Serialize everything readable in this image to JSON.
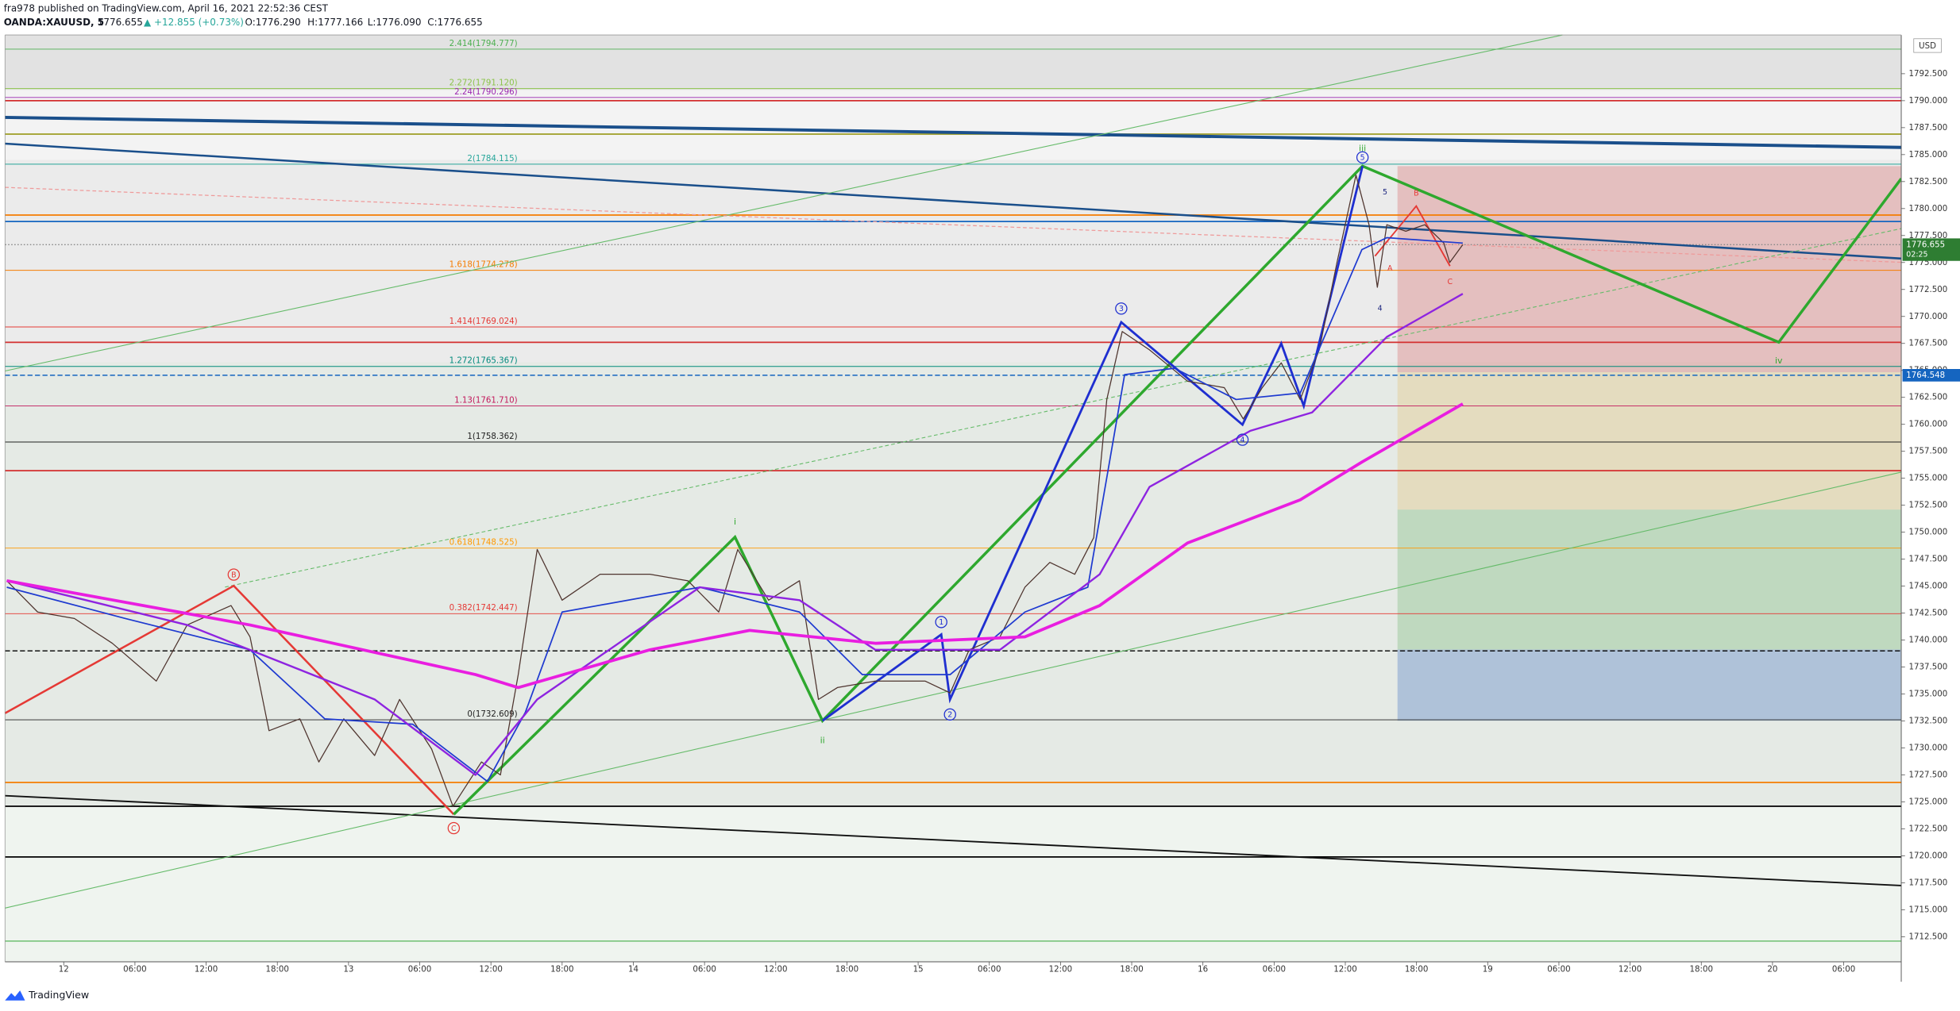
{
  "header": {
    "publisher": "fra978 published on TradingView.com, April 16, 2021 22:52:36 CEST",
    "symbol": "OANDA:XAUUSD, 5",
    "last": "1776.655",
    "change": "▲ +12.855 (+0.73%)",
    "open": "O:1776.290",
    "high": "H:1777.166",
    "low": "L:1776.090",
    "close": "C:1776.655"
  },
  "currency": "USD",
  "footer": {
    "brand": "TradingView"
  },
  "wave_labels": [
    "B",
    "C",
    "i",
    "ii",
    "iii",
    "iv",
    "1",
    "2",
    "3",
    "4",
    "5",
    "5",
    "4",
    "A",
    "B",
    "C"
  ],
  "chart_data": {
    "type": "line",
    "xlim": [
      -4.95,
      154.85
    ],
    "ylim": [
      1710.18,
      1796.09
    ],
    "xticks": [
      {
        "value": 0,
        "label": "12"
      },
      {
        "value": 6,
        "label": "06:00"
      },
      {
        "value": 12,
        "label": "12:00"
      },
      {
        "value": 18,
        "label": "18:00"
      },
      {
        "value": 24,
        "label": "13"
      },
      {
        "value": 30,
        "label": "06:00"
      },
      {
        "value": 36,
        "label": "12:00"
      },
      {
        "value": 42,
        "label": "18:00"
      },
      {
        "value": 48,
        "label": "14"
      },
      {
        "value": 54,
        "label": "06:00"
      },
      {
        "value": 60,
        "label": "12:00"
      },
      {
        "value": 66,
        "label": "18:00"
      },
      {
        "value": 72,
        "label": "15"
      },
      {
        "value": 78,
        "label": "06:00"
      },
      {
        "value": 84,
        "label": "12:00"
      },
      {
        "value": 90,
        "label": "18:00"
      },
      {
        "value": 96,
        "label": "16"
      },
      {
        "value": 102,
        "label": "06:00"
      },
      {
        "value": 108,
        "label": "12:00"
      },
      {
        "value": 114,
        "label": "18:00"
      },
      {
        "value": 120,
        "label": "19"
      },
      {
        "value": 126,
        "label": "06:00"
      },
      {
        "value": 132,
        "label": "12:00"
      },
      {
        "value": 138,
        "label": "18:00"
      },
      {
        "value": 144,
        "label": "20"
      },
      {
        "value": 150,
        "label": "06:00"
      }
    ],
    "yticks": [
      {
        "value": 1712.5,
        "label": "1712.500"
      },
      {
        "value": 1715,
        "label": "1715.000"
      },
      {
        "value": 1717.5,
        "label": "1717.500"
      },
      {
        "value": 1720,
        "label": "1720.000"
      },
      {
        "value": 1722.5,
        "label": "1722.500"
      },
      {
        "value": 1725,
        "label": "1725.000"
      },
      {
        "value": 1727.5,
        "label": "1727.500"
      },
      {
        "value": 1730,
        "label": "1730.000"
      },
      {
        "value": 1732.5,
        "label": "1732.500"
      },
      {
        "value": 1735,
        "label": "1735.000"
      },
      {
        "value": 1737.5,
        "label": "1737.500"
      },
      {
        "value": 1740,
        "label": "1740.000"
      },
      {
        "value": 1742.5,
        "label": "1742.500"
      },
      {
        "value": 1745,
        "label": "1745.000"
      },
      {
        "value": 1747.5,
        "label": "1747.500"
      },
      {
        "value": 1750,
        "label": "1750.000"
      },
      {
        "value": 1752.5,
        "label": "1752.500"
      },
      {
        "value": 1755,
        "label": "1755.000"
      },
      {
        "value": 1757.5,
        "label": "1757.500"
      },
      {
        "value": 1760,
        "label": "1760.000"
      },
      {
        "value": 1762.5,
        "label": "1762.500"
      },
      {
        "value": 1765,
        "label": "1765.000"
      },
      {
        "value": 1767.5,
        "label": "1767.500"
      },
      {
        "value": 1770,
        "label": "1770.000"
      },
      {
        "value": 1772.5,
        "label": "1772.500"
      },
      {
        "value": 1775,
        "label": "1775.000"
      },
      {
        "value": 1777.5,
        "label": "1777.500"
      },
      {
        "value": 1780,
        "label": "1780.000"
      },
      {
        "value": 1782.5,
        "label": "1782.500"
      },
      {
        "value": 1785,
        "label": "1785.000"
      },
      {
        "value": 1787.5,
        "label": "1787.500"
      },
      {
        "value": 1790,
        "label": "1790.000"
      },
      {
        "value": 1792.5,
        "label": "1792.500"
      }
    ],
    "series": [
      {
        "color": "#4e342e",
        "x": [
          -4.8,
          -2.2,
          0.9,
          4.1,
          7.8,
          10.4,
          14.1,
          15.7,
          17.3,
          19.9,
          21.5,
          23.6,
          26.2,
          28.3,
          31.0,
          32.8,
          35.2,
          36.8,
          38.3,
          39.9,
          42.0,
          45.2,
          49.4,
          52.6,
          55.2,
          56.8,
          59.4,
          62.0,
          63.6,
          65.2,
          68.4,
          72.6,
          74.7,
          76.3,
          78.9,
          81.0,
          83.1,
          85.2,
          86.8,
          87.9,
          89.2,
          91.5,
          94.7,
          97.8,
          99.4,
          101.0,
          102.6,
          104.2,
          105.8,
          107.3,
          108.9,
          110.0,
          110.7,
          111.5,
          113.1,
          114.7,
          116.3,
          116.8,
          117.9
        ],
        "values": [
          1745.5,
          1742.6,
          1742.0,
          1739.7,
          1736.2,
          1741.4,
          1743.2,
          1740.3,
          1731.6,
          1732.7,
          1728.7,
          1732.7,
          1729.3,
          1734.5,
          1729.9,
          1724.6,
          1728.7,
          1727.5,
          1736.8,
          1748.4,
          1743.7,
          1746.1,
          1746.1,
          1745.5,
          1742.6,
          1748.4,
          1743.7,
          1745.5,
          1734.5,
          1735.6,
          1736.2,
          1736.2,
          1735.1,
          1739.1,
          1740.3,
          1744.9,
          1747.2,
          1746.1,
          1749.5,
          1762.3,
          1768.6,
          1766.9,
          1764.0,
          1763.4,
          1760.5,
          1763.4,
          1765.7,
          1762.3,
          1766.9,
          1775.0,
          1783.1,
          1778.5,
          1772.7,
          1778.5,
          1777.9,
          1778.5,
          1776.8,
          1775.0,
          1776.655
        ]
      },
      {
        "color": "#1e3ad0",
        "x": [
          -4.8,
          5.2,
          15.7,
          22.0,
          29.4,
          35.7,
          38.9,
          42.0,
          53.6,
          62.0,
          67.3,
          74.7,
          81.0,
          86.3,
          89.4,
          93.6,
          98.8,
          104.2,
          109.4,
          111.5,
          117.9
        ],
        "values": [
          1744.9,
          1742.0,
          1739.1,
          1732.7,
          1732.2,
          1726.9,
          1733.3,
          1742.6,
          1744.9,
          1742.6,
          1736.8,
          1736.8,
          1742.6,
          1744.9,
          1764.6,
          1765.2,
          1762.3,
          1762.9,
          1776.2,
          1777.3,
          1776.8
        ]
      },
      {
        "color": "#8e24e0",
        "x": [
          -4.8,
          10.4,
          26.2,
          34.7,
          39.9,
          53.6,
          62.0,
          68.4,
          78.9,
          87.3,
          91.5,
          100.0,
          105.2,
          111.5,
          117.9
        ],
        "values": [
          1745.5,
          1741.4,
          1734.5,
          1727.5,
          1734.5,
          1744.9,
          1743.7,
          1739.1,
          1739.1,
          1746.1,
          1754.2,
          1759.4,
          1761.1,
          1768.1,
          1772.1
        ]
      },
      {
        "color": "#e91ee0",
        "x": [
          -4.8,
          15.7,
          34.7,
          38.3,
          49.4,
          57.8,
          68.4,
          81.0,
          87.3,
          94.7,
          104.2,
          109.4,
          117.9
        ],
        "values": [
          1745.5,
          1741.4,
          1736.8,
          1735.6,
          1739.1,
          1740.9,
          1739.7,
          1740.3,
          1743.2,
          1749.0,
          1753.0,
          1756.5,
          1761.9
        ]
      }
    ],
    "fib_levels": [
      {
        "label": "2.414(1794.777)",
        "price": 1794.777,
        "color": "#4caf50"
      },
      {
        "label": "2.272(1791.120)",
        "price": 1791.12,
        "color": "#8bc34a"
      },
      {
        "label": "2.24(1790.296)",
        "price": 1790.296,
        "color": "#9c27b0"
      },
      {
        "label": "2(1784.115)",
        "price": 1784.115,
        "color": "#26a69a"
      },
      {
        "label": "1.618(1774.278)",
        "price": 1774.278,
        "color": "#f57c00"
      },
      {
        "label": "1.414(1769.024)",
        "price": 1769.024,
        "color": "#e53935"
      },
      {
        "label": "1.272(1765.367)",
        "price": 1765.367,
        "color": "#00897b"
      },
      {
        "label": "1.13(1761.710)",
        "price": 1761.71,
        "color": "#c2185b"
      },
      {
        "label": "1(1758.362)",
        "price": 1758.362,
        "color": "#212121"
      },
      {
        "label": "0.618(1748.525)",
        "price": 1748.525,
        "color": "#ff9800"
      },
      {
        "label": "0.382(1742.447)",
        "price": 1742.447,
        "color": "#e53935"
      },
      {
        "label": "0(1732.609)",
        "price": 1732.609,
        "color": "#212121"
      }
    ],
    "levels": [
      {
        "price": 1790.0,
        "color": "#d32f2f"
      },
      {
        "price": 1786.9,
        "color": "#9e9d24"
      },
      {
        "price": 1779.4,
        "color": "#f57c00"
      },
      {
        "price": 1778.8,
        "color": "#1565c0"
      },
      {
        "price": 1776.655,
        "color": "#888888",
        "style": "dotted"
      },
      {
        "price": 1767.6,
        "color": "#d32f2f"
      },
      {
        "price": 1764.548,
        "color": "#1565c0",
        "style": "dashed"
      },
      {
        "price": 1755.7,
        "color": "#d32f2f"
      },
      {
        "price": 1739.0,
        "color": "#000000",
        "style": "dashed"
      },
      {
        "price": 1726.8,
        "color": "#f57c00"
      },
      {
        "price": 1724.6,
        "color": "#000000"
      },
      {
        "price": 1719.9,
        "color": "#000000"
      },
      {
        "price": 1712.1,
        "color": "#81c784"
      }
    ],
    "price_tags": [
      {
        "price": 1776.655,
        "time": "02:25",
        "color": "#2e7d32"
      },
      {
        "price": 1764.548,
        "color": "#1565c0"
      }
    ]
  }
}
